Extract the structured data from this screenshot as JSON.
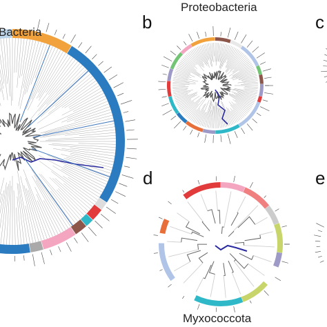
{
  "figure": {
    "panels": [
      {
        "id": "a",
        "letter": "",
        "title": "Bacteria"
      },
      {
        "id": "b",
        "letter": "b",
        "title": "Proteobacteria"
      },
      {
        "id": "c",
        "letter": "c",
        "title": ""
      },
      {
        "id": "d",
        "letter": "d",
        "title": "Myxococcota"
      },
      {
        "id": "e",
        "letter": "e",
        "title": ""
      }
    ],
    "colors": {
      "branch": "#8c8c8c",
      "highlight": "#2a2aa0",
      "accent": "#3a74bd",
      "label": "#444444",
      "ring_palette": [
        "#2b7bc0",
        "#f2a23c",
        "#e23b3b",
        "#74c476",
        "#2fb8c8",
        "#f4a5c0",
        "#9e9ac8",
        "#c7d56a",
        "#e86f3a",
        "#b0c4e8",
        "#8c564b",
        "#d62728"
      ]
    }
  }
}
